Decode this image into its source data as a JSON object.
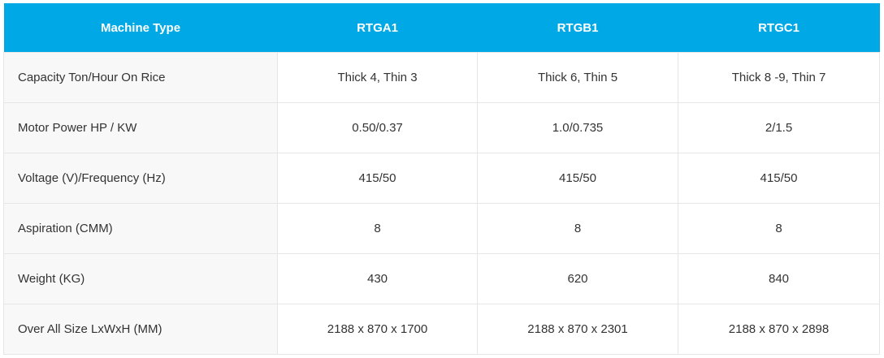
{
  "table": {
    "header_color": "#00a9e6",
    "headers": [
      "Machine Type",
      "RTGA1",
      "RTGB1",
      "RTGC1"
    ],
    "rows": [
      [
        "Capacity Ton/Hour On Rice",
        "Thick 4, Thin 3",
        "Thick 6, Thin 5",
        "Thick 8 -9, Thin 7"
      ],
      [
        "Motor Power HP / KW",
        "0.50/0.37",
        "1.0/0.735",
        "2/1.5"
      ],
      [
        "Voltage (V)/Frequency (Hz)",
        "415/50",
        "415/50",
        "415/50"
      ],
      [
        "Aspiration (CMM)",
        "8",
        "8",
        "8"
      ],
      [
        "Weight (KG)",
        "430",
        "620",
        "840"
      ],
      [
        "Over All Size LxWxH (MM)",
        "2188 x 870 x 1700",
        "2188 x 870 x 2301",
        "2188 x 870 x 2898"
      ]
    ]
  }
}
